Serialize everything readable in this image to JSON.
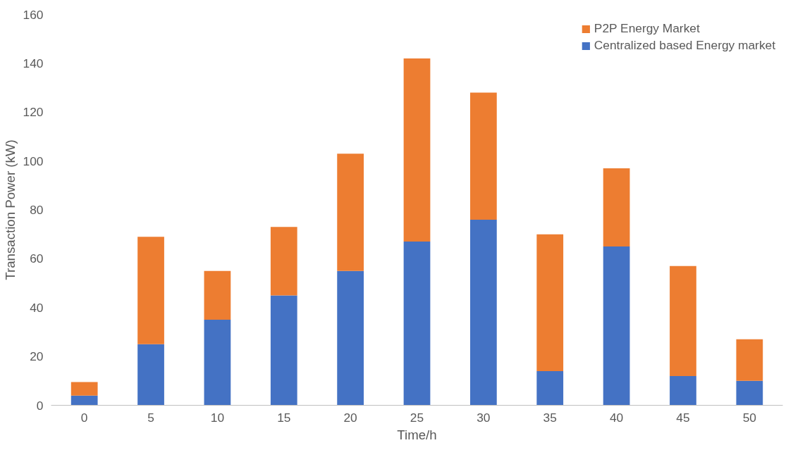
{
  "chart_data": {
    "type": "bar",
    "stacked": true,
    "xlabel": "Time/h",
    "ylabel": "Transaction Power (kW)",
    "categories": [
      "0",
      "5",
      "10",
      "15",
      "20",
      "25",
      "30",
      "35",
      "40",
      "45",
      "50"
    ],
    "series": [
      {
        "name": "Centralized based Energy market",
        "color": "#4472c4",
        "values": [
          4,
          25,
          35,
          45,
          55,
          67,
          76,
          14,
          65,
          12,
          10
        ]
      },
      {
        "name": "P2P Energy Market",
        "color": "#ed7d31",
        "values": [
          5.5,
          44,
          20,
          28,
          48,
          75,
          52,
          56,
          32,
          45,
          17
        ]
      }
    ],
    "ylim": [
      0,
      160
    ],
    "yticks": [
      0,
      20,
      40,
      60,
      80,
      100,
      120,
      140,
      160
    ],
    "grid": false,
    "legend": "top right"
  }
}
